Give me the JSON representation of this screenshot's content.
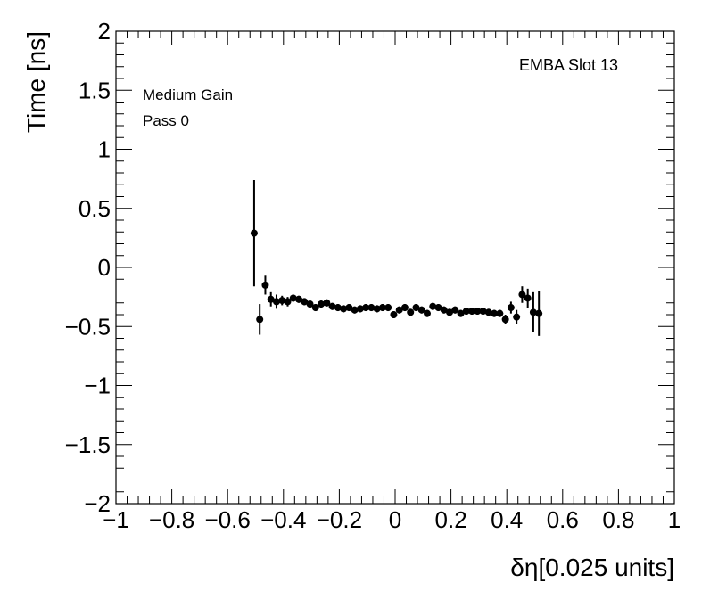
{
  "chart_data": {
    "type": "scatter",
    "title": "",
    "xlabel": "δη[0.025 units]",
    "ylabel": "Time [ns]",
    "xlim": [
      -1,
      1
    ],
    "ylim": [
      -2,
      2
    ],
    "xticks": [
      "−1",
      "−0.8",
      "−0.6",
      "−0.4",
      "−0.2",
      "0",
      "0.2",
      "0.4",
      "0.6",
      "0.8",
      "1"
    ],
    "yticks": [
      "−2",
      "−1.5",
      "−1",
      "−0.5",
      "0",
      "0.5",
      "1",
      "1.5",
      "2"
    ],
    "grid": false,
    "marker_color": "#000000",
    "annotations": {
      "slot": "EMBA Slot 13",
      "gain": "Medium Gain",
      "pass": "Pass 0"
    },
    "points": [
      {
        "x": -0.505,
        "y": 0.29,
        "err": 0.45
      },
      {
        "x": -0.485,
        "y": -0.44,
        "err": 0.13
      },
      {
        "x": -0.465,
        "y": -0.15,
        "err": 0.08
      },
      {
        "x": -0.445,
        "y": -0.27,
        "err": 0.06
      },
      {
        "x": -0.425,
        "y": -0.29,
        "err": 0.06
      },
      {
        "x": -0.405,
        "y": -0.28,
        "err": 0.04
      },
      {
        "x": -0.385,
        "y": -0.29,
        "err": 0.04
      },
      {
        "x": -0.365,
        "y": -0.26,
        "err": 0.03
      },
      {
        "x": -0.345,
        "y": -0.27,
        "err": 0.03
      },
      {
        "x": -0.325,
        "y": -0.29,
        "err": 0.03
      },
      {
        "x": -0.305,
        "y": -0.31,
        "err": 0.03
      },
      {
        "x": -0.285,
        "y": -0.34,
        "err": 0.03
      },
      {
        "x": -0.265,
        "y": -0.31,
        "err": 0.03
      },
      {
        "x": -0.245,
        "y": -0.3,
        "err": 0.03
      },
      {
        "x": -0.225,
        "y": -0.33,
        "err": 0.03
      },
      {
        "x": -0.205,
        "y": -0.34,
        "err": 0.03
      },
      {
        "x": -0.185,
        "y": -0.35,
        "err": 0.03
      },
      {
        "x": -0.165,
        "y": -0.34,
        "err": 0.03
      },
      {
        "x": -0.145,
        "y": -0.36,
        "err": 0.03
      },
      {
        "x": -0.125,
        "y": -0.35,
        "err": 0.03
      },
      {
        "x": -0.105,
        "y": -0.34,
        "err": 0.03
      },
      {
        "x": -0.085,
        "y": -0.34,
        "err": 0.03
      },
      {
        "x": -0.065,
        "y": -0.35,
        "err": 0.03
      },
      {
        "x": -0.045,
        "y": -0.34,
        "err": 0.03
      },
      {
        "x": -0.025,
        "y": -0.34,
        "err": 0.03
      },
      {
        "x": -0.005,
        "y": -0.4,
        "err": 0.03
      },
      {
        "x": 0.015,
        "y": -0.36,
        "err": 0.03
      },
      {
        "x": 0.035,
        "y": -0.34,
        "err": 0.03
      },
      {
        "x": 0.055,
        "y": -0.38,
        "err": 0.03
      },
      {
        "x": 0.075,
        "y": -0.34,
        "err": 0.03
      },
      {
        "x": 0.095,
        "y": -0.36,
        "err": 0.03
      },
      {
        "x": 0.115,
        "y": -0.39,
        "err": 0.03
      },
      {
        "x": 0.135,
        "y": -0.33,
        "err": 0.03
      },
      {
        "x": 0.155,
        "y": -0.34,
        "err": 0.03
      },
      {
        "x": 0.175,
        "y": -0.36,
        "err": 0.03
      },
      {
        "x": 0.195,
        "y": -0.38,
        "err": 0.03
      },
      {
        "x": 0.215,
        "y": -0.36,
        "err": 0.03
      },
      {
        "x": 0.235,
        "y": -0.39,
        "err": 0.03
      },
      {
        "x": 0.255,
        "y": -0.37,
        "err": 0.03
      },
      {
        "x": 0.275,
        "y": -0.37,
        "err": 0.03
      },
      {
        "x": 0.295,
        "y": -0.37,
        "err": 0.03
      },
      {
        "x": 0.315,
        "y": -0.37,
        "err": 0.03
      },
      {
        "x": 0.335,
        "y": -0.38,
        "err": 0.03
      },
      {
        "x": 0.355,
        "y": -0.39,
        "err": 0.03
      },
      {
        "x": 0.375,
        "y": -0.39,
        "err": 0.03
      },
      {
        "x": 0.395,
        "y": -0.44,
        "err": 0.04
      },
      {
        "x": 0.415,
        "y": -0.34,
        "err": 0.05
      },
      {
        "x": 0.435,
        "y": -0.42,
        "err": 0.06
      },
      {
        "x": 0.455,
        "y": -0.23,
        "err": 0.07
      },
      {
        "x": 0.475,
        "y": -0.26,
        "err": 0.08
      },
      {
        "x": 0.495,
        "y": -0.38,
        "err": 0.17
      },
      {
        "x": 0.515,
        "y": -0.39,
        "err": 0.19
      }
    ]
  }
}
